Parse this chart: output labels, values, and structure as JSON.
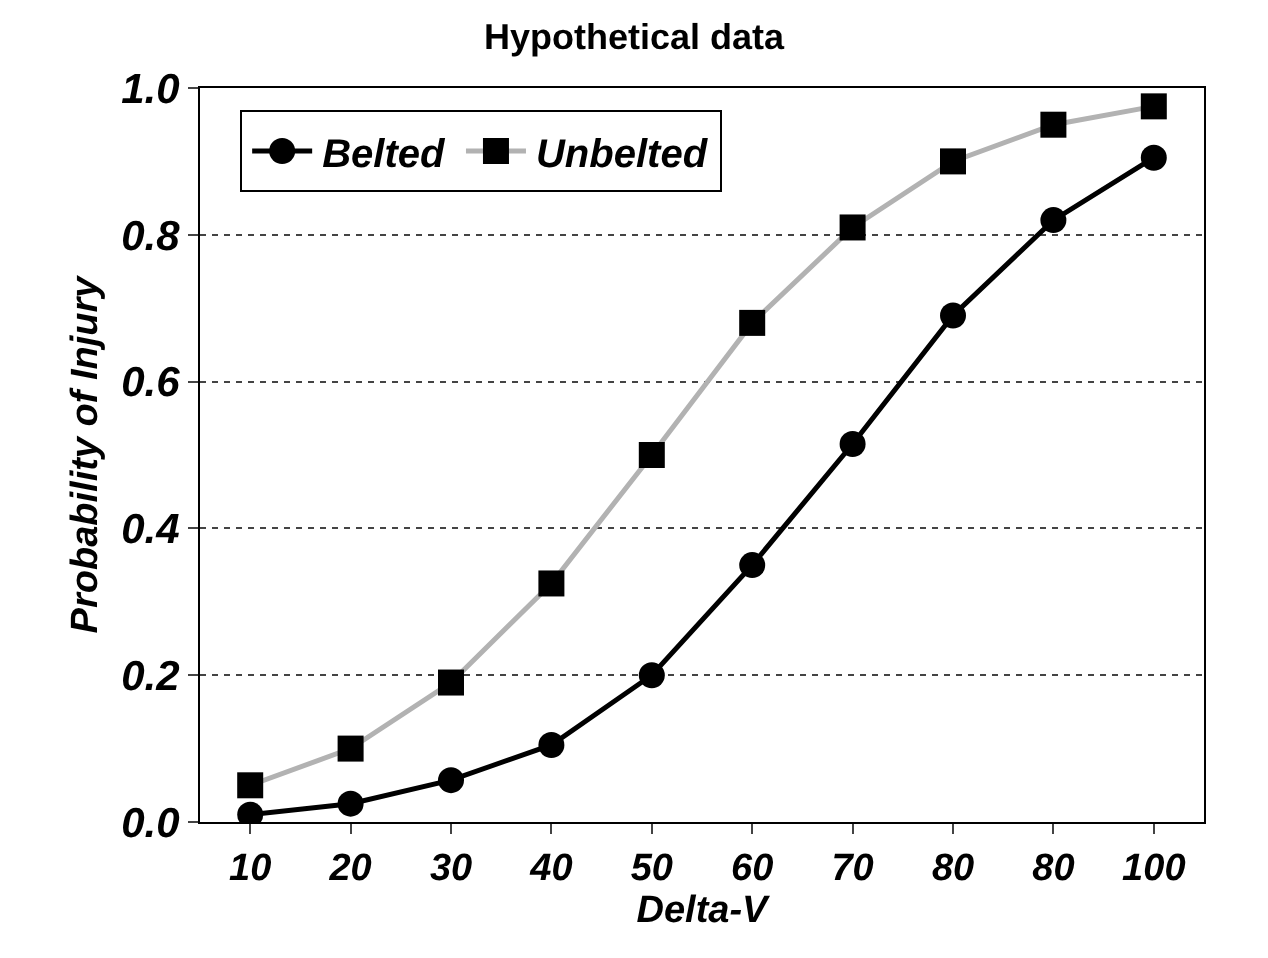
{
  "chart_data": {
    "type": "line",
    "title": "Hypothetical data",
    "xlabel": "Delta-V",
    "ylabel": "Probability of Injury",
    "categories": [
      "10",
      "20",
      "30",
      "40",
      "50",
      "60",
      "70",
      "80",
      "80",
      "100"
    ],
    "series": [
      {
        "name": "Belted",
        "color": "#000000",
        "marker": "circle",
        "values": [
          0.01,
          0.025,
          0.057,
          0.105,
          0.2,
          0.35,
          0.515,
          0.69,
          0.82,
          0.905
        ]
      },
      {
        "name": "Unbelted",
        "color": "#b2b2b2",
        "marker": "square",
        "values": [
          0.05,
          0.1,
          0.19,
          0.325,
          0.5,
          0.68,
          0.81,
          0.9,
          0.95,
          0.975
        ]
      }
    ],
    "ylim": [
      0,
      1
    ],
    "yticks": [
      {
        "value": 0,
        "label": "0.0"
      },
      {
        "value": 0.2,
        "label": "0.2"
      },
      {
        "value": 0.4,
        "label": "0.4"
      },
      {
        "value": 0.6,
        "label": "0.6"
      },
      {
        "value": 0.8,
        "label": "0.8"
      },
      {
        "value": 1,
        "label": "1.0"
      }
    ],
    "grid": "y",
    "legend": "top left",
    "line_style": "solid"
  }
}
